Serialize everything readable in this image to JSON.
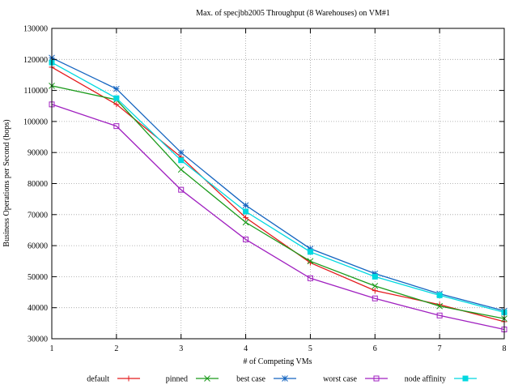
{
  "chart_data": {
    "type": "line",
    "title": "Max. of specjbb2005 Throughput (8 Warehouses) on VM#1",
    "xlabel": "# of Competing VMs",
    "ylabel": "Business Operations per Second (bops)",
    "x": [
      1,
      2,
      3,
      4,
      5,
      6,
      7,
      8
    ],
    "xlim": [
      1,
      8
    ],
    "ylim": [
      30000,
      130000
    ],
    "yticks": [
      30000,
      40000,
      50000,
      60000,
      70000,
      80000,
      90000,
      100000,
      110000,
      120000,
      130000
    ],
    "grid": true,
    "legend_position": "bottom",
    "series": [
      {
        "name": "default",
        "color": "#e41a1c",
        "marker": "plus",
        "values": [
          117500,
          105500,
          88500,
          69000,
          54500,
          45500,
          41000,
          35500
        ]
      },
      {
        "name": "pinned",
        "color": "#1a9a1a",
        "marker": "cross",
        "values": [
          111500,
          107000,
          84500,
          67500,
          55000,
          47000,
          40500,
          36500
        ]
      },
      {
        "name": "best case",
        "color": "#1565c0",
        "marker": "star",
        "values": [
          120500,
          110500,
          90000,
          73000,
          59000,
          51000,
          44500,
          39000
        ]
      },
      {
        "name": "worst case",
        "color": "#a020c0",
        "marker": "box",
        "values": [
          105500,
          98500,
          78000,
          62000,
          49500,
          43000,
          37500,
          33000
        ]
      },
      {
        "name": "node affinity",
        "color": "#00d8e0",
        "marker": "filledbox",
        "values": [
          119000,
          107500,
          87500,
          71000,
          58000,
          50000,
          44000,
          38500
        ]
      }
    ]
  }
}
